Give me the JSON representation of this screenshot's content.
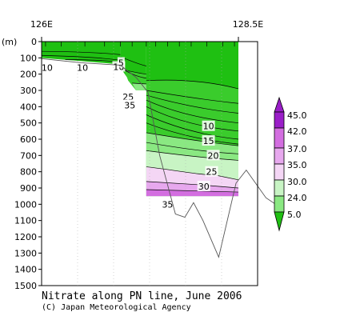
{
  "chart_data": {
    "type": "heatmap",
    "title": "Nitrate along PN line, June 2006",
    "credit": "(C) Japan Meteorological Agency",
    "x_axis": {
      "left_label": "126E",
      "right_label": "128.5E",
      "range": [
        126,
        128.5
      ]
    },
    "y_axis": {
      "unit_label": "(m)",
      "ticks": [
        0,
        100,
        200,
        300,
        400,
        500,
        600,
        700,
        800,
        900,
        1000,
        1100,
        1200,
        1300,
        1400,
        1500
      ],
      "range": [
        0,
        1500
      ],
      "inverted": true
    },
    "colorbar": {
      "labels": [
        "45.0",
        "42.0",
        "37.0",
        "35.0",
        "30.0",
        "24.0",
        "5.0"
      ],
      "colors": [
        "#9a1ec8",
        "#d36ee0",
        "#e7a8ee",
        "#f4d6f5",
        "#c8f4c4",
        "#8ae882",
        "#3acc2c",
        "#1fc012"
      ]
    },
    "contour_labels": [
      {
        "text": "10",
        "lon": 126.07,
        "depth": 160
      },
      {
        "text": "10",
        "lon": 126.52,
        "depth": 160
      },
      {
        "text": "10",
        "lon": 126.98,
        "depth": 155
      },
      {
        "text": "5",
        "lon": 127.01,
        "depth": 130
      },
      {
        "text": "25",
        "lon": 127.1,
        "depth": 340
      },
      {
        "text": "35",
        "lon": 127.12,
        "depth": 390
      },
      {
        "text": "10",
        "lon": 128.12,
        "depth": 520
      },
      {
        "text": "15",
        "lon": 128.12,
        "depth": 610
      },
      {
        "text": "20",
        "lon": 128.18,
        "depth": 700
      },
      {
        "text": "25",
        "lon": 128.16,
        "depth": 800
      },
      {
        "text": "30",
        "lon": 128.06,
        "depth": 890
      },
      {
        "text": "35",
        "lon": 127.6,
        "depth": 1000
      }
    ],
    "bottom_profile": [
      {
        "lon": 126.0,
        "depth": 105
      },
      {
        "lon": 126.5,
        "depth": 130
      },
      {
        "lon": 127.0,
        "depth": 145
      },
      {
        "lon": 127.2,
        "depth": 220
      },
      {
        "lon": 127.35,
        "depth": 310
      },
      {
        "lon": 127.5,
        "depth": 700
      },
      {
        "lon": 127.7,
        "depth": 1060
      },
      {
        "lon": 127.82,
        "depth": 1080
      },
      {
        "lon": 127.93,
        "depth": 990
      },
      {
        "lon": 128.05,
        "depth": 1100
      },
      {
        "lon": 128.25,
        "depth": 1325
      },
      {
        "lon": 128.47,
        "depth": 870
      },
      {
        "lon": 128.6,
        "depth": 790
      },
      {
        "lon": 128.85,
        "depth": 960
      },
      {
        "lon": 129.05,
        "depth": 1025
      }
    ]
  }
}
